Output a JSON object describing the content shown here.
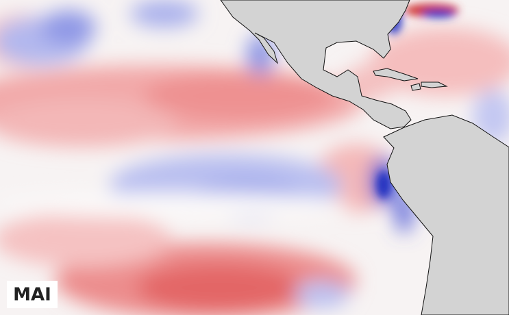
{
  "label": "MAI"
}
